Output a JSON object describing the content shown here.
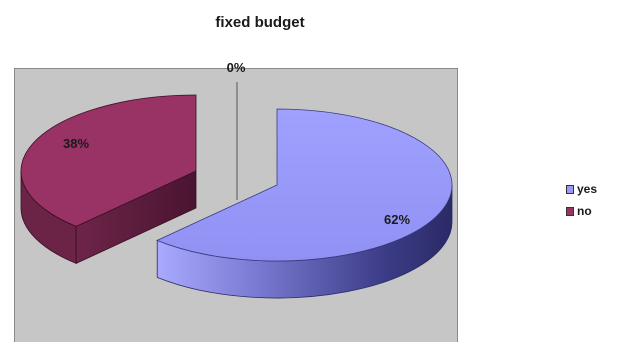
{
  "chart_data": {
    "type": "pie",
    "title": "fixed budget",
    "categories": [
      "yes",
      "no"
    ],
    "values": [
      62,
      38
    ],
    "data_labels": [
      "62%",
      "38%"
    ],
    "extra_label": "0%",
    "colors": {
      "yes": "#9999ff",
      "no": "#993366"
    },
    "legend_position": "right",
    "style": "3d-exploded"
  }
}
